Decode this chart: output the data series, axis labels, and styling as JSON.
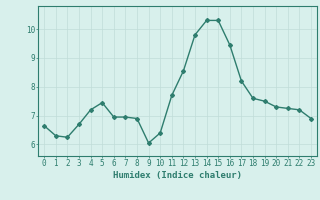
{
  "x": [
    0,
    1,
    2,
    3,
    4,
    5,
    6,
    7,
    8,
    9,
    10,
    11,
    12,
    13,
    14,
    15,
    16,
    17,
    18,
    19,
    20,
    21,
    22,
    23
  ],
  "y": [
    6.65,
    6.3,
    6.25,
    6.7,
    7.2,
    7.45,
    6.95,
    6.95,
    6.9,
    6.05,
    6.4,
    7.7,
    8.55,
    9.8,
    10.3,
    10.3,
    9.45,
    8.2,
    7.6,
    7.5,
    7.3,
    7.25,
    7.2,
    6.9
  ],
  "line_color": "#2e7d6e",
  "marker": "D",
  "marker_size": 2.0,
  "line_width": 1.0,
  "bg_color": "#d8f0ec",
  "grid_color": "#c0ddd8",
  "axis_color": "#2e7d6e",
  "tick_color": "#2e7d6e",
  "xlabel": "Humidex (Indice chaleur)",
  "xlabel_fontsize": 6.5,
  "yticks": [
    6,
    7,
    8,
    9,
    10
  ],
  "xticks": [
    0,
    1,
    2,
    3,
    4,
    5,
    6,
    7,
    8,
    9,
    10,
    11,
    12,
    13,
    14,
    15,
    16,
    17,
    18,
    19,
    20,
    21,
    22,
    23
  ],
  "xlim": [
    -0.5,
    23.5
  ],
  "ylim": [
    5.6,
    10.8
  ],
  "tick_fontsize": 5.5,
  "fig_width": 3.2,
  "fig_height": 2.0,
  "dpi": 100
}
